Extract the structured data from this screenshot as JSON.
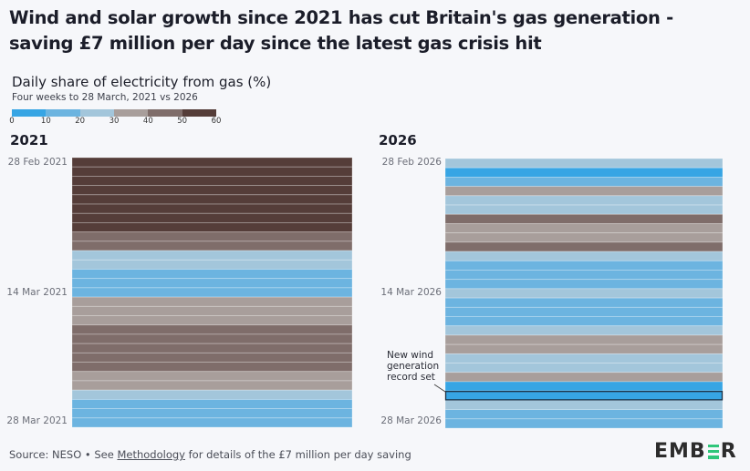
{
  "title": "Wind and solar growth since 2021 has cut Britain's gas generation - saving £7 million per day since the latest gas crisis hit",
  "chart_data": [
    {
      "type": "heatmap",
      "title": "Daily share of electricity from gas (%)",
      "subtitle": "Four weeks to 28 March, 2021 vs 2026",
      "legend": {
        "placement": "top-left",
        "ticks": [
          "0",
          "10",
          "20",
          "30",
          "40",
          "50",
          "60"
        ],
        "bins": [
          {
            "range": [
              0,
              10
            ],
            "color": "#37a5e4"
          },
          {
            "range": [
              10,
              20
            ],
            "color": "#6cb4e0"
          },
          {
            "range": [
              20,
              30
            ],
            "color": "#a3c6db"
          },
          {
            "range": [
              30,
              40
            ],
            "color": "#a89e9b"
          },
          {
            "range": [
              40,
              50
            ],
            "color": "#7f6d6a"
          },
          {
            "range": [
              50,
              60
            ],
            "color": "#553d39"
          }
        ]
      },
      "panels": [
        {
          "label": "2021",
          "start_label": "28 Feb 2021",
          "mid_label": "14 Mar 2021",
          "end_label": "28 Mar 2021",
          "days": 29,
          "bin_by_day": [
            5,
            5,
            5,
            5,
            5,
            5,
            5,
            5,
            4,
            4,
            2,
            2,
            1,
            1,
            1,
            3,
            3,
            3,
            4,
            4,
            4,
            4,
            4,
            3,
            3,
            2,
            1,
            1,
            1
          ],
          "bin_range_labels_note": "bin index: 0=0-10, 1=10-20, 2=20-30, 3=30-40, 4=40-50, 5=50-60"
        },
        {
          "label": "2026",
          "start_label": "28 Feb 2026",
          "mid_label": "14 Mar 2026",
          "end_label": "28 Mar 2026",
          "days": 29,
          "bin_by_day": [
            2,
            0,
            1,
            3,
            2,
            2,
            4,
            3,
            3,
            4,
            2,
            1,
            1,
            1,
            2,
            1,
            1,
            1,
            2,
            3,
            3,
            2,
            2,
            3,
            0,
            0,
            2,
            1,
            1
          ],
          "highlight_day_index": 25,
          "annotation": "New wind generation record set"
        }
      ]
    }
  ],
  "annotation_lines": [
    "New wind",
    "generation",
    "record set"
  ],
  "footer": {
    "prefix": "Source: NESO • See ",
    "link": "Methodology",
    "suffix": " for details of the £7 million per day saving"
  },
  "logo": {
    "left": "EMB",
    "right": "R",
    "accent": "#2fc67a"
  }
}
